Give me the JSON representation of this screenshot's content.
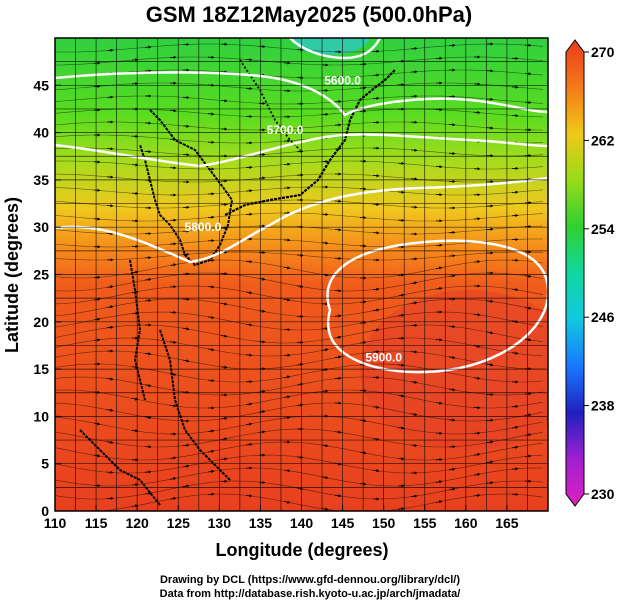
{
  "chart_data": {
    "type": "heatmap",
    "title": "GSM 18Z12May2025 (500.0hPa)",
    "xlabel": "Longitude (degrees)",
    "ylabel": "Latitude  (degrees)",
    "xlim": [
      110,
      170
    ],
    "ylim": [
      0,
      50
    ],
    "x_ticks": [
      110,
      115,
      120,
      125,
      130,
      135,
      140,
      145,
      150,
      155,
      160,
      165
    ],
    "y_ticks": [
      0,
      5,
      10,
      15,
      20,
      25,
      30,
      35,
      40,
      45
    ],
    "colorbar": {
      "min": 230,
      "max": 270,
      "ticks": [
        230,
        238,
        246,
        254,
        262,
        270
      ]
    },
    "contour_labels": [
      {
        "text": "5600.0",
        "lon": 145,
        "lat": 45.5
      },
      {
        "text": "5700.0",
        "lon": 138,
        "lat": 40.3
      },
      {
        "text": "5800.0",
        "lon": 128,
        "lat": 30.0
      },
      {
        "text": "5900.0",
        "lon": 150,
        "lat": 16.2
      }
    ],
    "grid": true,
    "credits": [
      "Drawing by DCL (https://www.gfd-dennou.org/library/dcl/)",
      "Data from http://database.rish.kyoto-u.ac.jp/arch/jmadata/"
    ]
  }
}
